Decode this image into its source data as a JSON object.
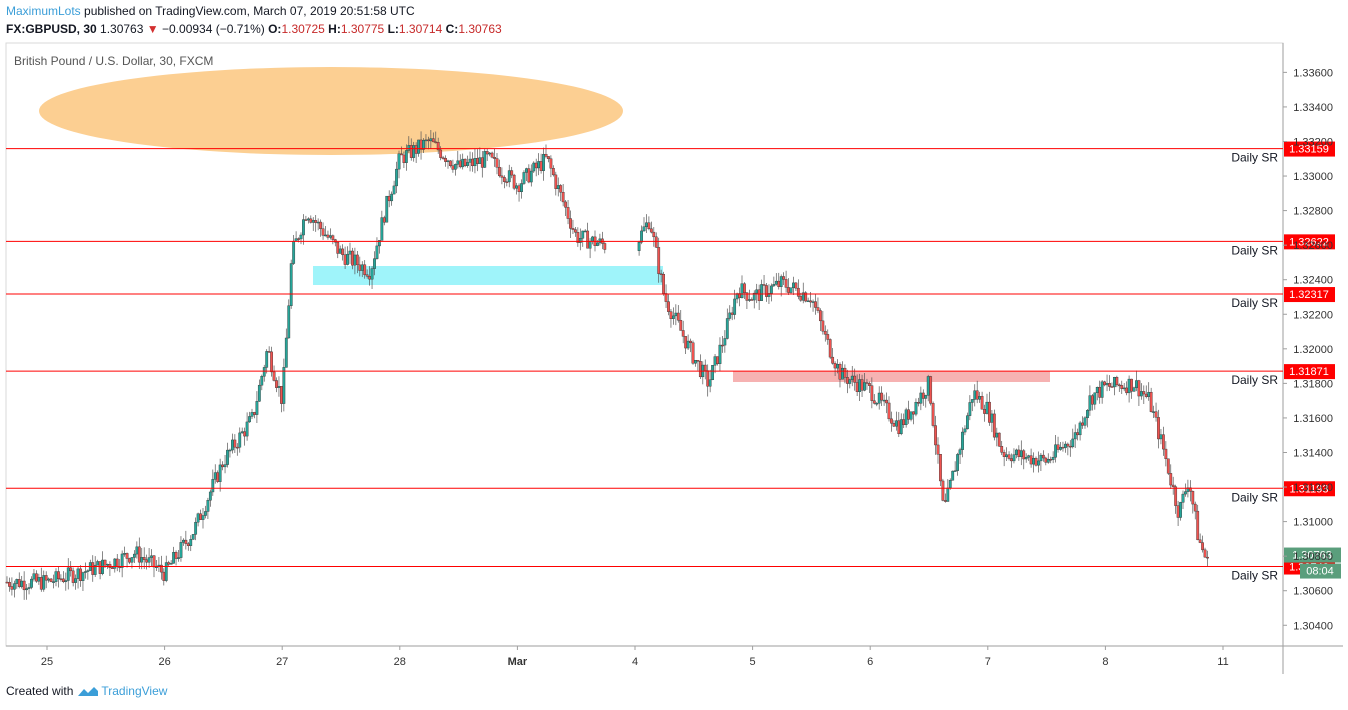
{
  "header": {
    "author": "MaximumLots",
    "published": "published on TradingView.com, March 07, 2019 20:51:58 UTC",
    "symbol": "FX:GBPUSD, 30",
    "last": "1.30763",
    "change": "−0.00934 (−0.71%)",
    "o_label": "O:",
    "o_value": "1.30725",
    "h_label": "H:",
    "h_value": "1.30775",
    "l_label": "L:",
    "l_value": "1.30714",
    "c_label": "C:",
    "c_value": "1.30763"
  },
  "footer": {
    "created_with": "Created with",
    "brand": "TradingView"
  },
  "colors": {
    "up": "#26a69a",
    "down": "#ef5350",
    "sr_line": "#ff0000",
    "ellipse": "#fbc77f",
    "zone_blue": "#8ef2f9",
    "zone_red": "#f5a5a5"
  },
  "chart_data": {
    "type": "candlestick",
    "title": "British Pound / U.S. Dollar, 30, FXCM",
    "x_ticks": [
      "25",
      "26",
      "27",
      "28",
      "Mar",
      "4",
      "5",
      "6",
      "7",
      "8",
      "11"
    ],
    "y_ticks": [
      "1.33600",
      "1.33400",
      "1.33200",
      "1.33000",
      "1.32800",
      "1.32600",
      "1.32400",
      "1.32200",
      "1.32000",
      "1.31800",
      "1.31600",
      "1.31400",
      "1.31200",
      "1.31000",
      "1.30800",
      "1.30600",
      "1.30400"
    ],
    "ylim": [
      1.3028,
      1.3377
    ],
    "sr_levels": [
      {
        "price": 1.33159,
        "label": "Daily SR",
        "tag": "1.33159"
      },
      {
        "price": 1.32622,
        "label": "Daily SR",
        "tag": "1.32622"
      },
      {
        "price": 1.32317,
        "label": "Daily SR",
        "tag": "1.32317"
      },
      {
        "price": 1.31871,
        "label": "Daily SR",
        "tag": "1.31871"
      },
      {
        "price": 1.31193,
        "label": "Daily SR",
        "tag": "1.31193"
      },
      {
        "price": 1.3074,
        "label": "Daily SR",
        "tag": "1.30740"
      }
    ],
    "last_price": {
      "price": 1.30763,
      "tag": "1.30763",
      "countdown": "08:04"
    },
    "price_path": [
      {
        "t": "Feb 25 00:00",
        "price": 1.3065
      },
      {
        "t": "Feb 25 12:00",
        "price": 1.3075
      },
      {
        "t": "Feb 25 18:00",
        "price": 1.3082
      },
      {
        "t": "Feb 26 00:00",
        "price": 1.307
      },
      {
        "t": "Feb 26 06:00",
        "price": 1.3095
      },
      {
        "t": "Feb 26 12:00",
        "price": 1.3135
      },
      {
        "t": "Feb 26 18:00",
        "price": 1.316
      },
      {
        "t": "Feb 26 21:00",
        "price": 1.32
      },
      {
        "t": "Feb 27 00:00",
        "price": 1.317
      },
      {
        "t": "Feb 27 02:00",
        "price": 1.3255
      },
      {
        "t": "Feb 27 05:00",
        "price": 1.328
      },
      {
        "t": "Feb 27 12:00",
        "price": 1.3255
      },
      {
        "t": "Feb 27 18:00",
        "price": 1.3245
      },
      {
        "t": "Feb 27 21:00",
        "price": 1.328
      },
      {
        "t": "Feb 28 00:00",
        "price": 1.331
      },
      {
        "t": "Feb 28 06:00",
        "price": 1.332
      },
      {
        "t": "Feb 28 12:00",
        "price": 1.3305
      },
      {
        "t": "Feb 28 18:00",
        "price": 1.331
      },
      {
        "t": "Mar 01 00:00",
        "price": 1.3295
      },
      {
        "t": "Mar 01 06:00",
        "price": 1.331
      },
      {
        "t": "Mar 01 12:00",
        "price": 1.3265
      },
      {
        "t": "Mar 01 18:00",
        "price": 1.326
      },
      {
        "t": "Mar 02 00:00",
        "price": 1.3245
      },
      {
        "t": "Mar 04 00:00",
        "price": 1.326
      },
      {
        "t": "Mar 04 03:00",
        "price": 1.3275
      },
      {
        "t": "Mar 04 06:00",
        "price": 1.323
      },
      {
        "t": "Mar 04 12:00",
        "price": 1.3195
      },
      {
        "t": "Mar 04 15:00",
        "price": 1.318
      },
      {
        "t": "Mar 04 18:00",
        "price": 1.3205
      },
      {
        "t": "Mar 04 21:00",
        "price": 1.3235
      },
      {
        "t": "Mar 05 00:00",
        "price": 1.323
      },
      {
        "t": "Mar 05 06:00",
        "price": 1.3238
      },
      {
        "t": "Mar 05 12:00",
        "price": 1.323
      },
      {
        "t": "Mar 05 15:00",
        "price": 1.3205
      },
      {
        "t": "Mar 05 18:00",
        "price": 1.3185
      },
      {
        "t": "Mar 06 00:00",
        "price": 1.3176
      },
      {
        "t": "Mar 06 06:00",
        "price": 1.3155
      },
      {
        "t": "Mar 06 12:00",
        "price": 1.318
      },
      {
        "t": "Mar 06 15:00",
        "price": 1.3105
      },
      {
        "t": "Mar 06 18:00",
        "price": 1.314
      },
      {
        "t": "Mar 06 21:00",
        "price": 1.3175
      },
      {
        "t": "Mar 07 00:00",
        "price": 1.3165
      },
      {
        "t": "Mar 07 03:00",
        "price": 1.314
      },
      {
        "t": "Mar 07 12:00",
        "price": 1.3135
      },
      {
        "t": "Mar 07 18:00",
        "price": 1.315
      },
      {
        "t": "Mar 07 21:00",
        "price": 1.3172
      },
      {
        "t": "Mar 08 00:00",
        "price": 1.3178
      },
      {
        "t": "Mar 08 06:00",
        "price": 1.318
      },
      {
        "t": "Mar 08 09:00",
        "price": 1.317
      },
      {
        "t": "Mar 08 12:00",
        "price": 1.314
      },
      {
        "t": "Mar 08 15:00",
        "price": 1.3105
      },
      {
        "t": "Mar 08 17:00",
        "price": 1.3125
      },
      {
        "t": "Mar 08 19:00",
        "price": 1.309
      },
      {
        "t": "Mar 08 20:51",
        "price": 1.3076
      }
    ]
  }
}
